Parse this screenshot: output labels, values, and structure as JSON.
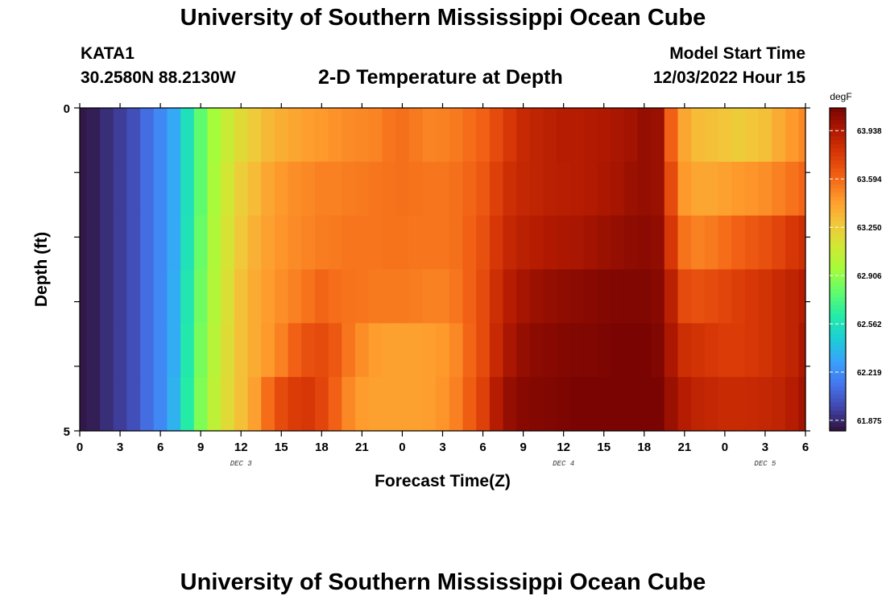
{
  "header": {
    "title": "University of Southern Mississippi Ocean Cube",
    "station_id": "KATA1",
    "station_coords": "30.2580N  88.2130W",
    "subtitle": "2-D Temperature at Depth",
    "model_start_label": "Model Start Time",
    "model_start_value": "12/03/2022 Hour 15"
  },
  "footer": {
    "title": "University of Southern Mississippi Ocean Cube"
  },
  "chart_data": {
    "type": "heatmap",
    "title": "2-D Temperature at Depth",
    "xlabel": "Forecast Time(Z)",
    "ylabel": "Depth (ft)",
    "x_tick_labels": [
      "0",
      "3",
      "6",
      "9",
      "12",
      "15",
      "18",
      "21",
      "0",
      "3",
      "6",
      "9",
      "12",
      "15",
      "18",
      "21",
      "0",
      "3",
      "6"
    ],
    "x_hours": [
      0,
      3,
      6,
      9,
      12,
      15,
      18,
      21,
      24,
      27,
      30,
      33,
      36,
      39,
      42,
      45,
      48,
      51,
      54
    ],
    "day_labels": [
      {
        "label": "DEC 3",
        "hour": 12
      },
      {
        "label": "DEC 4",
        "hour": 36
      },
      {
        "label": "DEC 5",
        "hour": 51
      }
    ],
    "y_tick_labels": [
      "0",
      "5"
    ],
    "ylim": [
      0,
      5
    ],
    "xlim": [
      0,
      54
    ],
    "depth_levels": [
      0,
      1,
      2,
      3,
      4,
      5
    ],
    "colorbar": {
      "unit": "degF",
      "min": 61.8,
      "max": 64.1,
      "tick_values": [
        63.938,
        63.594,
        63.25,
        62.906,
        62.562,
        62.219,
        61.875
      ],
      "tick_labels": [
        "63.938",
        "63.594",
        "63.250",
        "62.906",
        "62.562",
        "62.219",
        "61.875"
      ],
      "colors": [
        "#30123b",
        "#4145ab",
        "#4675ed",
        "#39a2fc",
        "#1bcfd4",
        "#24eca6",
        "#61fc6c",
        "#a4fc3b",
        "#d1e834",
        "#f3c63a",
        "#fe9b2d",
        "#f36315",
        "#d93806",
        "#b11901",
        "#7a0402"
      ]
    },
    "time_hours": [
      0,
      1,
      2,
      3,
      4,
      5,
      6,
      7,
      8,
      9,
      10,
      11,
      12,
      13,
      14,
      15,
      16,
      17,
      18,
      19,
      20,
      21,
      22,
      23,
      24,
      25,
      26,
      27,
      28,
      29,
      30,
      31,
      32,
      33,
      34,
      35,
      36,
      37,
      38,
      39,
      40,
      41,
      42,
      43,
      44,
      45,
      46,
      47,
      48,
      49,
      50,
      51,
      52,
      53,
      54
    ],
    "values": [
      [
        61.82,
        61.84,
        61.89,
        61.94,
        62.0,
        62.1,
        62.2,
        62.32,
        62.55,
        62.78,
        62.95,
        63.08,
        63.18,
        63.26,
        63.33,
        63.37,
        63.4,
        63.43,
        63.45,
        63.47,
        63.49,
        63.5,
        63.51,
        63.55,
        63.57,
        63.54,
        63.51,
        63.52,
        63.54,
        63.58,
        63.62,
        63.7,
        63.78,
        63.85,
        63.88,
        63.9,
        63.92,
        63.92,
        63.93,
        63.94,
        63.96,
        63.98,
        64.02,
        64.0,
        63.62,
        63.4,
        63.32,
        63.3,
        63.28,
        63.25,
        63.28,
        63.3,
        63.38,
        63.45,
        63.5
      ],
      [
        61.82,
        61.84,
        61.89,
        61.94,
        62.0,
        62.1,
        62.2,
        62.32,
        62.55,
        62.78,
        62.97,
        63.12,
        63.24,
        63.32,
        63.4,
        63.45,
        63.48,
        63.5,
        63.52,
        63.52,
        63.53,
        63.54,
        63.55,
        63.56,
        63.57,
        63.56,
        63.55,
        63.55,
        63.57,
        63.6,
        63.65,
        63.74,
        63.82,
        63.86,
        63.88,
        63.9,
        63.91,
        63.92,
        63.93,
        63.95,
        63.97,
        64.0,
        64.02,
        64.0,
        63.7,
        63.45,
        63.4,
        63.4,
        63.42,
        63.45,
        63.46,
        63.48,
        63.52,
        63.56,
        63.6
      ],
      [
        61.82,
        61.84,
        61.89,
        61.94,
        62.0,
        62.1,
        62.2,
        62.32,
        62.56,
        62.8,
        62.99,
        63.14,
        63.27,
        63.36,
        63.42,
        63.46,
        63.49,
        63.51,
        63.53,
        63.54,
        63.55,
        63.55,
        63.55,
        63.56,
        63.56,
        63.55,
        63.55,
        63.55,
        63.57,
        63.62,
        63.68,
        63.78,
        63.86,
        63.9,
        63.92,
        63.94,
        63.95,
        63.96,
        63.98,
        64.0,
        64.02,
        64.04,
        64.05,
        64.03,
        63.78,
        63.56,
        63.52,
        63.54,
        63.58,
        63.62,
        63.65,
        63.68,
        63.72,
        63.78,
        63.82
      ],
      [
        61.82,
        61.84,
        61.89,
        61.94,
        62.0,
        62.1,
        62.2,
        62.33,
        62.58,
        62.82,
        63.0,
        63.16,
        63.3,
        63.38,
        63.44,
        63.48,
        63.52,
        63.56,
        63.6,
        63.58,
        63.56,
        63.55,
        63.54,
        63.54,
        63.54,
        63.53,
        63.52,
        63.52,
        63.55,
        63.62,
        63.7,
        63.82,
        63.92,
        63.97,
        64.0,
        64.02,
        64.04,
        64.05,
        64.06,
        64.07,
        64.08,
        64.08,
        64.08,
        64.06,
        63.9,
        63.7,
        63.68,
        63.7,
        63.72,
        63.75,
        63.78,
        63.8,
        63.84,
        63.88,
        63.92
      ],
      [
        61.82,
        61.84,
        61.89,
        61.94,
        62.0,
        62.1,
        62.2,
        62.33,
        62.6,
        62.84,
        63.02,
        63.17,
        63.3,
        63.38,
        63.45,
        63.52,
        63.62,
        63.68,
        63.7,
        63.65,
        63.55,
        63.48,
        63.44,
        63.42,
        63.42,
        63.42,
        63.43,
        63.45,
        63.5,
        63.6,
        63.7,
        63.85,
        63.96,
        64.02,
        64.05,
        64.06,
        64.07,
        64.08,
        64.08,
        64.09,
        64.1,
        64.1,
        64.1,
        64.08,
        63.95,
        63.82,
        63.8,
        63.78,
        63.76,
        63.76,
        63.78,
        63.8,
        63.84,
        63.88,
        63.95
      ],
      [
        61.82,
        61.84,
        61.89,
        61.94,
        62.0,
        62.1,
        62.2,
        62.35,
        62.62,
        62.86,
        63.04,
        63.18,
        63.3,
        63.42,
        63.58,
        63.7,
        63.76,
        63.78,
        63.72,
        63.62,
        63.5,
        63.44,
        63.42,
        63.42,
        63.42,
        63.42,
        63.43,
        63.46,
        63.52,
        63.63,
        63.74,
        63.92,
        64.02,
        64.06,
        64.07,
        64.08,
        64.09,
        64.1,
        64.1,
        64.1,
        64.11,
        64.12,
        64.13,
        64.1,
        64.0,
        63.92,
        63.88,
        63.86,
        63.84,
        63.84,
        63.85,
        63.86,
        63.88,
        63.92,
        63.98
      ]
    ]
  }
}
